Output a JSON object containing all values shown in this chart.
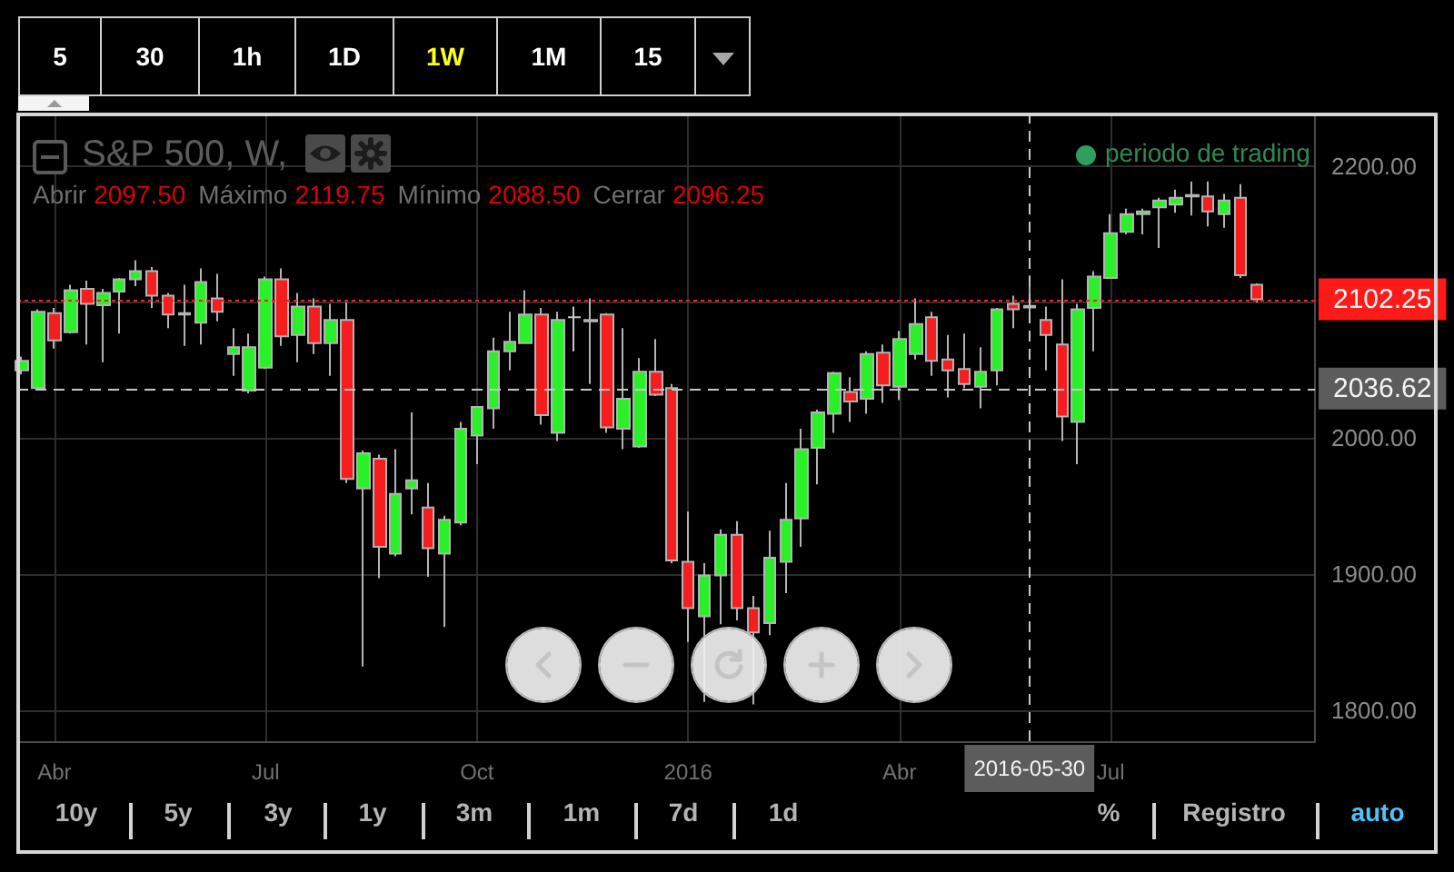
{
  "chart_data": {
    "type": "candlestick",
    "title": "S&P 500, W,",
    "x": [
      "2015-03-23",
      "2015-03-30",
      "2015-04-06",
      "2015-04-13",
      "2015-04-20",
      "2015-04-27",
      "2015-05-04",
      "2015-05-11",
      "2015-05-18",
      "2015-05-25",
      "2015-06-01",
      "2015-06-08",
      "2015-06-15",
      "2015-06-22",
      "2015-06-29",
      "2015-07-06",
      "2015-07-13",
      "2015-07-20",
      "2015-07-27",
      "2015-08-03",
      "2015-08-10",
      "2015-08-17",
      "2015-08-24",
      "2015-08-31",
      "2015-09-07",
      "2015-09-14",
      "2015-09-21",
      "2015-09-28",
      "2015-10-05",
      "2015-10-12",
      "2015-10-19",
      "2015-10-26",
      "2015-11-02",
      "2015-11-09",
      "2015-11-16",
      "2015-11-23",
      "2015-11-30",
      "2015-12-07",
      "2015-12-14",
      "2015-12-21",
      "2015-12-28",
      "2016-01-04",
      "2016-01-11",
      "2016-01-18",
      "2016-01-25",
      "2016-02-01",
      "2016-02-08",
      "2016-02-15",
      "2016-02-22",
      "2016-02-29",
      "2016-03-07",
      "2016-03-14",
      "2016-03-21",
      "2016-03-28",
      "2016-04-04",
      "2016-04-11",
      "2016-04-18",
      "2016-04-25",
      "2016-05-02",
      "2016-05-09",
      "2016-05-16",
      "2016-05-23",
      "2016-05-30",
      "2016-06-06",
      "2016-06-13",
      "2016-06-20",
      "2016-06-27",
      "2016-07-04",
      "2016-07-11",
      "2016-07-18",
      "2016-07-25",
      "2016-08-01",
      "2016-08-08",
      "2016-08-15",
      "2016-08-22",
      "2016-08-29",
      "2016-09-05"
    ],
    "ohlc": [
      [
        2050,
        2060,
        2047,
        2057
      ],
      [
        2037,
        2095,
        2035,
        2093
      ],
      [
        2092,
        2096,
        2066,
        2072
      ],
      [
        2078,
        2113,
        2077,
        2109
      ],
      [
        2110,
        2116,
        2069,
        2099
      ],
      [
        2098,
        2110,
        2056,
        2107
      ],
      [
        2108,
        2118,
        2077,
        2117
      ],
      [
        2117,
        2131,
        2112,
        2123
      ],
      [
        2123,
        2126,
        2096,
        2105
      ],
      [
        2105,
        2107,
        2081,
        2091
      ],
      [
        2091,
        2113,
        2068,
        2092
      ],
      [
        2085,
        2125,
        2069,
        2115
      ],
      [
        2103,
        2121,
        2086,
        2093
      ],
      [
        2062,
        2081,
        2046,
        2067
      ],
      [
        2035,
        2077,
        2033,
        2067
      ],
      [
        2052,
        2119,
        2051,
        2117
      ],
      [
        2117,
        2125,
        2068,
        2075
      ],
      [
        2076,
        2107,
        2056,
        2097
      ],
      [
        2097,
        2103,
        2062,
        2070
      ],
      [
        2070,
        2099,
        2046,
        2087
      ],
      [
        2087,
        2100,
        1967,
        1970
      ],
      [
        1963,
        1991,
        1832,
        1989
      ],
      [
        1985,
        1988,
        1897,
        1920
      ],
      [
        1915,
        1992,
        1913,
        1959
      ],
      [
        1963,
        2019,
        1944,
        1969
      ],
      [
        1949,
        1967,
        1898,
        1919
      ],
      [
        1915,
        1943,
        1861,
        1940
      ],
      [
        1938,
        2012,
        1936,
        2007
      ],
      [
        2002,
        2023,
        1981,
        2023
      ],
      [
        2022,
        2074,
        2007,
        2064
      ],
      [
        2064,
        2093,
        2050,
        2071
      ],
      [
        2070,
        2109,
        2070,
        2091
      ],
      [
        2091,
        2096,
        2010,
        2017
      ],
      [
        2004,
        2093,
        1998,
        2087
      ],
      [
        2089,
        2097,
        2064,
        2089
      ],
      [
        2087,
        2103,
        2040,
        2086
      ],
      [
        2091,
        2092,
        2004,
        2008
      ],
      [
        2007,
        2081,
        1992,
        2029
      ],
      [
        1994,
        2059,
        1993,
        2049
      ],
      [
        2049,
        2073,
        2031,
        2032
      ],
      [
        2037,
        2040,
        1908,
        1910
      ],
      [
        1909,
        1946,
        1850,
        1875
      ],
      [
        1869,
        1908,
        1806,
        1899
      ],
      [
        1899,
        1933,
        1863,
        1929
      ],
      [
        1929,
        1939,
        1866,
        1875
      ],
      [
        1875,
        1884,
        1804,
        1857
      ],
      [
        1864,
        1932,
        1855,
        1912
      ],
      [
        1909,
        1967,
        1886,
        1940
      ],
      [
        1941,
        2007,
        1920,
        1992
      ],
      [
        1993,
        2021,
        1966,
        2019
      ],
      [
        2018,
        2049,
        2004,
        2048
      ],
      [
        2034,
        2045,
        2012,
        2027
      ],
      [
        2029,
        2064,
        2018,
        2062
      ],
      [
        2063,
        2069,
        2026,
        2039
      ],
      [
        2038,
        2079,
        2028,
        2073
      ],
      [
        2062,
        2103,
        2058,
        2084
      ],
      [
        2089,
        2093,
        2046,
        2057
      ],
      [
        2058,
        2076,
        2030,
        2050
      ],
      [
        2051,
        2077,
        2037,
        2040
      ],
      [
        2038,
        2067,
        2022,
        2049
      ],
      [
        2050,
        2096,
        2039,
        2095
      ],
      [
        2099,
        2105,
        2081,
        2095
      ],
      [
        2097.5,
        2119.75,
        2088.5,
        2096.25
      ],
      [
        2087,
        2097,
        2050,
        2076
      ],
      [
        2069,
        2117,
        1998,
        2016
      ],
      [
        2012,
        2099,
        1981,
        2095
      ],
      [
        2096,
        2123,
        2064,
        2119
      ],
      [
        2118,
        2165,
        2118,
        2151
      ],
      [
        2152,
        2169,
        2150,
        2165
      ],
      [
        2165,
        2169,
        2150,
        2167
      ],
      [
        2170,
        2177,
        2140,
        2175
      ],
      [
        2172,
        2183,
        2166,
        2177
      ],
      [
        2178,
        2189,
        2164,
        2179
      ],
      [
        2178,
        2189,
        2156,
        2167
      ],
      [
        2165,
        2180,
        2155,
        2175
      ],
      [
        2177,
        2187,
        2118,
        2120
      ],
      [
        2113,
        2114,
        2100,
        2102.25
      ]
    ],
    "colors": [
      "#2af02a",
      "#2af02a",
      "#f51d1d",
      "#2af02a",
      "#f51d1d",
      "#2af02a",
      "#2af02a",
      "#2af02a",
      "#f51d1d",
      "#f51d1d",
      "#2af02a",
      "#2af02a",
      "#f51d1d",
      "#2af02a",
      "#2af02a",
      "#2af02a",
      "#f51d1d",
      "#2af02a",
      "#f51d1d",
      "#2af02a",
      "#f51d1d",
      "#2af02a",
      "#f51d1d",
      "#2af02a",
      "#2af02a",
      "#f51d1d",
      "#2af02a",
      "#2af02a",
      "#2af02a",
      "#2af02a",
      "#2af02a",
      "#2af02a",
      "#f51d1d",
      "#2af02a",
      "#c8c8c8",
      "#f51d1d",
      "#f51d1d",
      "#2af02a",
      "#2af02a",
      "#f51d1d",
      "#f51d1d",
      "#f51d1d",
      "#2af02a",
      "#2af02a",
      "#f51d1d",
      "#f51d1d",
      "#2af02a",
      "#2af02a",
      "#2af02a",
      "#2af02a",
      "#2af02a",
      "#f51d1d",
      "#2af02a",
      "#f51d1d",
      "#2af02a",
      "#2af02a",
      "#f51d1d",
      "#f51d1d",
      "#f51d1d",
      "#2af02a",
      "#2af02a",
      "#f51d1d",
      "#f51d1d",
      "#f51d1d",
      "#f51d1d",
      "#2af02a",
      "#2af02a",
      "#2af02a",
      "#2af02a",
      "#2af02a",
      "#2af02a",
      "#2af02a",
      "#2af02a",
      "#f51d1d",
      "#2af02a",
      "#f51d1d",
      "#f51d1d"
    ],
    "xlim": [
      "2015-03-21",
      "2016-09-30"
    ],
    "xticks": [
      {
        "value": "2015-04-06",
        "label": "Abr"
      },
      {
        "value": "2015-07-06",
        "label": "Jul"
      },
      {
        "value": "2015-10-05",
        "label": "Oct"
      },
      {
        "value": "2016-01-04",
        "label": "2016"
      },
      {
        "value": "2016-04-04",
        "label": "Abr"
      },
      {
        "value": "2016-07-04",
        "label": "Jul"
      }
    ],
    "ylim": [
      1777,
      2237
    ],
    "yticks": [
      {
        "value": 1800,
        "label": "1800.00"
      },
      {
        "value": 1900,
        "label": "1900.00"
      },
      {
        "value": 2000,
        "label": "2000.00"
      },
      {
        "value": 2100,
        "label": null
      },
      {
        "value": 2200,
        "label": "2200.00"
      }
    ],
    "grid": true,
    "ref_lines": [
      {
        "axis": "y",
        "value": 2102.25,
        "label": "2102.25",
        "color": "#ff1a1a",
        "line_style": "dotted"
      },
      {
        "axis": "y",
        "value": 2036.62,
        "label": "2036.62",
        "color": "#c8c8c8",
        "line_style": "dashed"
      },
      {
        "axis": "x",
        "value": "2016-05-30",
        "label": "2016-05-30",
        "color": "#c8c8c8",
        "line_style": "dashed"
      }
    ],
    "annotations": [
      "Abrir",
      "2097.50",
      "Máximo",
      "2119.75",
      "Mínimo",
      "2088.50",
      "Cerrar",
      "2096.25",
      "periodo de trading",
      "5",
      "30",
      "1h",
      "1D",
      "1W",
      "1M",
      "15",
      "10y",
      "5y",
      "3y",
      "1y",
      "3m",
      "1m",
      "7d",
      "1d",
      "%",
      "Registro",
      "auto"
    ]
  }
}
